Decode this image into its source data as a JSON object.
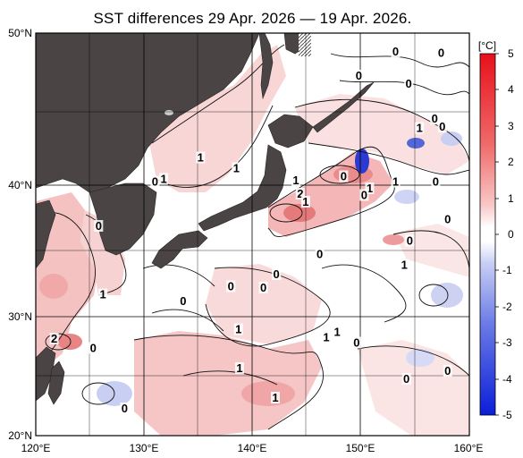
{
  "title": "SST differences 29 Apr. 2026 — 19 Apr. 2026.",
  "lat_labels": [
    "50°N",
    "40°N",
    "30°N",
    "20°N"
  ],
  "lon_labels": [
    "120°E",
    "130°E",
    "140°E",
    "150°E",
    "160°E"
  ],
  "colorbar": {
    "unit": "[°C]",
    "tick_labels": [
      "5",
      "4",
      "3",
      "2",
      "1",
      "0",
      "-1",
      "-2",
      "-3",
      "-4",
      "-5"
    ],
    "colors": {
      "warm_max": "#e8101a",
      "warm_mid": "#f4a4a4",
      "neutral": "#ffffff",
      "cool_mid": "#a9b4ec",
      "cool_max": "#0a1ed8"
    }
  },
  "map": {
    "lon_range": [
      120,
      160
    ],
    "lat_range": [
      20,
      50
    ],
    "land_color": "#4a4444",
    "ocean_color": "#ffffff"
  },
  "contour_labels": [
    {
      "text": "0",
      "lon": 153.2,
      "lat": 48.4
    },
    {
      "text": "0",
      "lon": 157.4,
      "lat": 48.3
    },
    {
      "text": "0",
      "lon": 149.8,
      "lat": 46.6
    },
    {
      "text": "0",
      "lon": 154.4,
      "lat": 46.0
    },
    {
      "text": "0",
      "lon": 156.8,
      "lat": 43.4
    },
    {
      "text": "1",
      "lon": 155.4,
      "lat": 42.7
    },
    {
      "text": "0",
      "lon": 157.5,
      "lat": 42.8
    },
    {
      "text": "1",
      "lon": 135.2,
      "lat": 40.5
    },
    {
      "text": "1",
      "lon": 138.5,
      "lat": 39.7
    },
    {
      "text": "0",
      "lon": 131.0,
      "lat": 38.7
    },
    {
      "text": "1",
      "lon": 131.8,
      "lat": 38.9
    },
    {
      "text": "0",
      "lon": 148.4,
      "lat": 39.1
    },
    {
      "text": "2",
      "lon": 144.4,
      "lat": 37.8
    },
    {
      "text": "1",
      "lon": 144.0,
      "lat": 38.8
    },
    {
      "text": "1",
      "lon": 144.9,
      "lat": 37.2
    },
    {
      "text": "1",
      "lon": 150.8,
      "lat": 38.2
    },
    {
      "text": "0",
      "lon": 150.3,
      "lat": 37.7
    },
    {
      "text": "1",
      "lon": 153.2,
      "lat": 38.7
    },
    {
      "text": "0",
      "lon": 156.9,
      "lat": 38.7
    },
    {
      "text": "0",
      "lon": 125.8,
      "lat": 35.4
    },
    {
      "text": "0",
      "lon": 146.2,
      "lat": 33.3
    },
    {
      "text": "0",
      "lon": 154.5,
      "lat": 34.3
    },
    {
      "text": "0",
      "lon": 158.0,
      "lat": 35.9
    },
    {
      "text": "1",
      "lon": 154.0,
      "lat": 32.5
    },
    {
      "text": "0",
      "lon": 142.2,
      "lat": 31.8
    },
    {
      "text": "0",
      "lon": 138.0,
      "lat": 30.9
    },
    {
      "text": "0",
      "lon": 141.0,
      "lat": 30.8
    },
    {
      "text": "1",
      "lon": 126.2,
      "lat": 30.3
    },
    {
      "text": "0",
      "lon": 133.6,
      "lat": 29.8
    },
    {
      "text": "1",
      "lon": 138.7,
      "lat": 27.7
    },
    {
      "text": "2",
      "lon": 121.7,
      "lat": 27.0
    },
    {
      "text": "0",
      "lon": 125.3,
      "lat": 26.3
    },
    {
      "text": "1",
      "lon": 146.8,
      "lat": 27.1
    },
    {
      "text": "1",
      "lon": 147.8,
      "lat": 27.5
    },
    {
      "text": "0",
      "lon": 149.6,
      "lat": 26.7
    },
    {
      "text": "1",
      "lon": 138.8,
      "lat": 24.8
    },
    {
      "text": "0",
      "lon": 154.2,
      "lat": 24.0
    },
    {
      "text": "0",
      "lon": 158.0,
      "lat": 24.6
    },
    {
      "text": "1",
      "lon": 142.1,
      "lat": 22.6
    },
    {
      "text": "0",
      "lon": 128.2,
      "lat": 21.8
    }
  ]
}
